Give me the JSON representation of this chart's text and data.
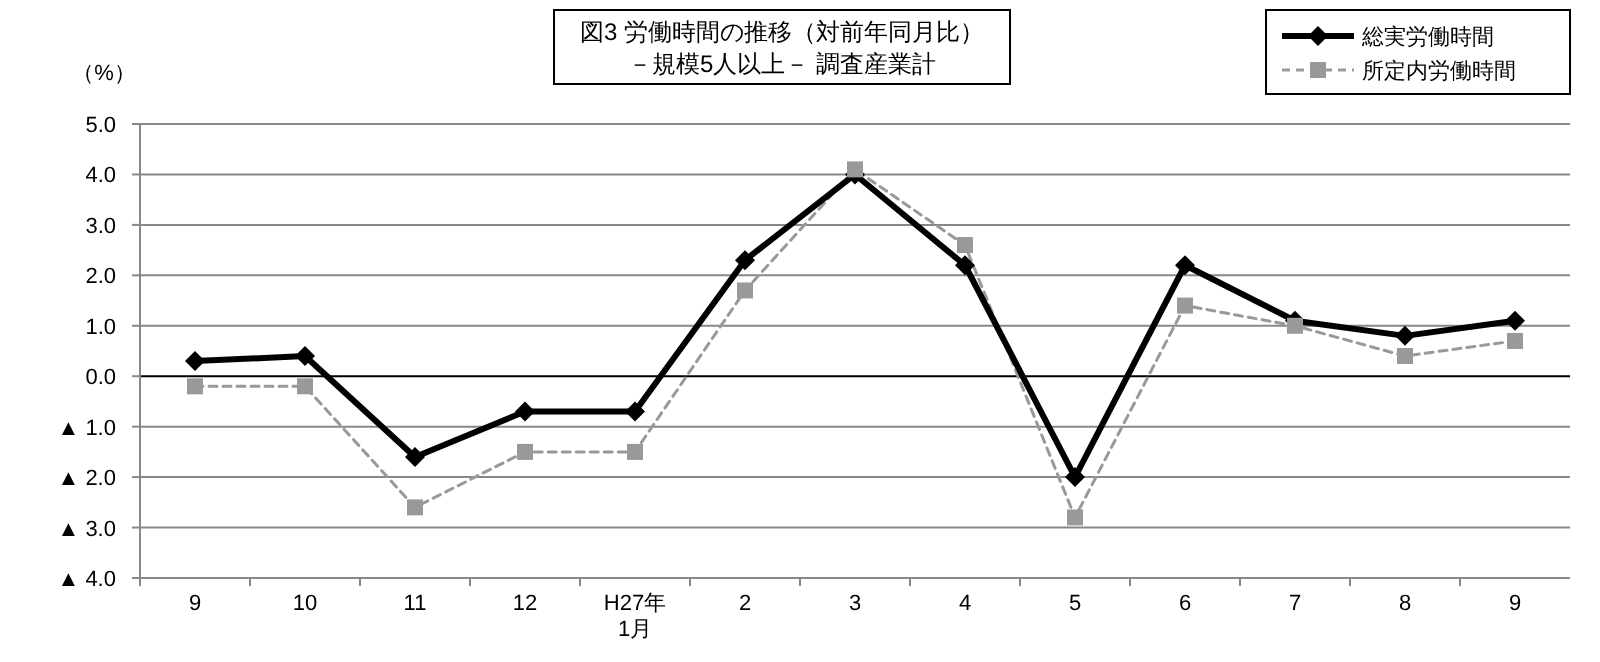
{
  "chart_data": {
    "type": "line",
    "title": "図3 労働時間の推移（対前年同月比）",
    "subtitle": "－規模5人以上－ 調査産業計",
    "ylabel": "（%）",
    "categories": [
      "9",
      "10",
      "11",
      "12",
      "H27年\n1月",
      "2",
      "3",
      "4",
      "5",
      "6",
      "7",
      "8",
      "9"
    ],
    "series": [
      {
        "name": "総実労働時間",
        "color": "#000000",
        "marker": "diamond",
        "line_style": "solid",
        "values": [
          0.3,
          0.4,
          -1.6,
          -0.7,
          -0.7,
          2.3,
          4.0,
          2.2,
          -2.0,
          2.2,
          1.1,
          0.8,
          1.1
        ]
      },
      {
        "name": "所定内労働時間",
        "color": "#999999",
        "marker": "square",
        "line_style": "dashed",
        "values": [
          -0.2,
          -0.2,
          -2.6,
          -1.5,
          -1.5,
          1.7,
          4.1,
          2.6,
          -2.8,
          1.4,
          1.0,
          0.4,
          0.7
        ]
      }
    ],
    "ylim": [
      -4.0,
      5.0
    ],
    "yticks": [
      {
        "value": -4,
        "label": "▲ 4.0"
      },
      {
        "value": -3,
        "label": "▲ 3.0"
      },
      {
        "value": -2,
        "label": "▲ 2.0"
      },
      {
        "value": -1,
        "label": "▲ 1.0"
      },
      {
        "value": 0,
        "label": "0.0"
      },
      {
        "value": 1,
        "label": "1.0"
      },
      {
        "value": 2,
        "label": "2.0"
      },
      {
        "value": 3,
        "label": "3.0"
      },
      {
        "value": 4,
        "label": "4.0"
      },
      {
        "value": 5,
        "label": "5.0"
      }
    ],
    "grid": "y",
    "legend": "top right"
  }
}
